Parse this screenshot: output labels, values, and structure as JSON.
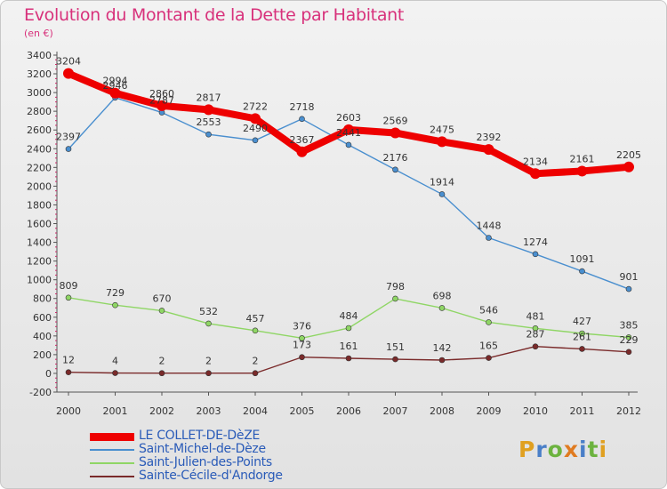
{
  "title": "Evolution du Montant de la Dette par Habitant",
  "subtitle": "(en €)",
  "logo": {
    "text": "Proxiti",
    "letter_colors": [
      "#e0a021",
      "#4a7fc8",
      "#6cb33f",
      "#e07b20",
      "#4a7fc8",
      "#6cb33f",
      "#e0a021"
    ]
  },
  "chart_data": {
    "type": "line",
    "title": "Evolution du Montant de la Dette par Habitant",
    "subtitle": "(en €)",
    "x": [
      "2000",
      "2001",
      "2002",
      "2003",
      "2004",
      "2005",
      "2006",
      "2007",
      "2008",
      "2009",
      "2010",
      "2011",
      "2012"
    ],
    "ylim": [
      -200,
      3400
    ],
    "yticks": [
      -200,
      0,
      200,
      400,
      600,
      800,
      1000,
      1200,
      1400,
      1600,
      1800,
      2000,
      2200,
      2400,
      2600,
      2800,
      3000,
      3200,
      3400
    ],
    "grid": false,
    "legend_position": "bottom-left",
    "series": [
      {
        "name": "LE COLLET-DE-DèZE",
        "color": "#ee0000",
        "values": [
          3204,
          2994,
          2860,
          2817,
          2722,
          2367,
          2603,
          2569,
          2475,
          2392,
          2134,
          2161,
          2205
        ]
      },
      {
        "name": "Saint-Michel-de-Dèze",
        "color": "#4a8fcf",
        "values": [
          2397,
          2946,
          2787,
          2553,
          2490,
          2718,
          2441,
          2176,
          1914,
          1448,
          1274,
          1091,
          901
        ]
      },
      {
        "name": "Saint-Julien-des-Points",
        "color": "#8fd665",
        "values": [
          809,
          729,
          670,
          532,
          457,
          376,
          484,
          798,
          698,
          546,
          481,
          427,
          385
        ]
      },
      {
        "name": "Sainte-Cécile-d'Andorge",
        "color": "#7a2a2a",
        "values": [
          12,
          4,
          2,
          2,
          2,
          173,
          161,
          151,
          142,
          165,
          287,
          261,
          229
        ]
      }
    ]
  }
}
